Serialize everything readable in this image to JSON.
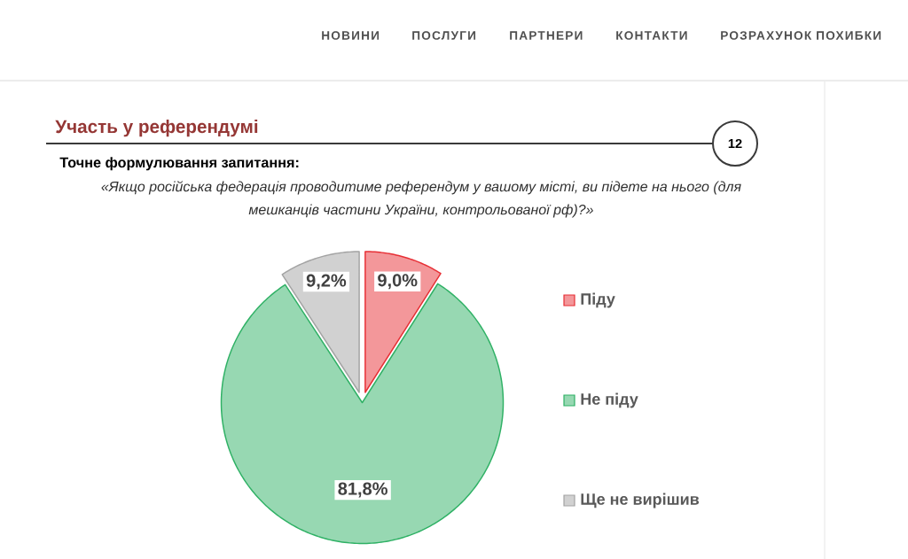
{
  "chart_data": {
    "type": "pie",
    "title": "Участь у референдумі",
    "subtitle": "Точне формулювання запитання:",
    "categories": [
      "Піду",
      "Не піду",
      "Ще не вирішив"
    ],
    "values": [
      9.0,
      81.8,
      9.2
    ],
    "colors": [
      "#f3979a",
      "#97d8b2",
      "#d1d1d1"
    ],
    "value_labels": [
      "9,0%",
      "81,8%",
      "9,2%"
    ],
    "legend": "right",
    "annotations": [
      "«Якщо російська федерація проводитиме референдум у вашому місті, ви підете на нього (для мешканців частини України, контрольованої рф)?»",
      "12",
      "НОВИНИ",
      "ПОСЛУГИ",
      "ПАРТНЕРИ",
      "КОНТАКТИ",
      "РОЗРАХУНОК ПОХИБКИ"
    ]
  }
}
